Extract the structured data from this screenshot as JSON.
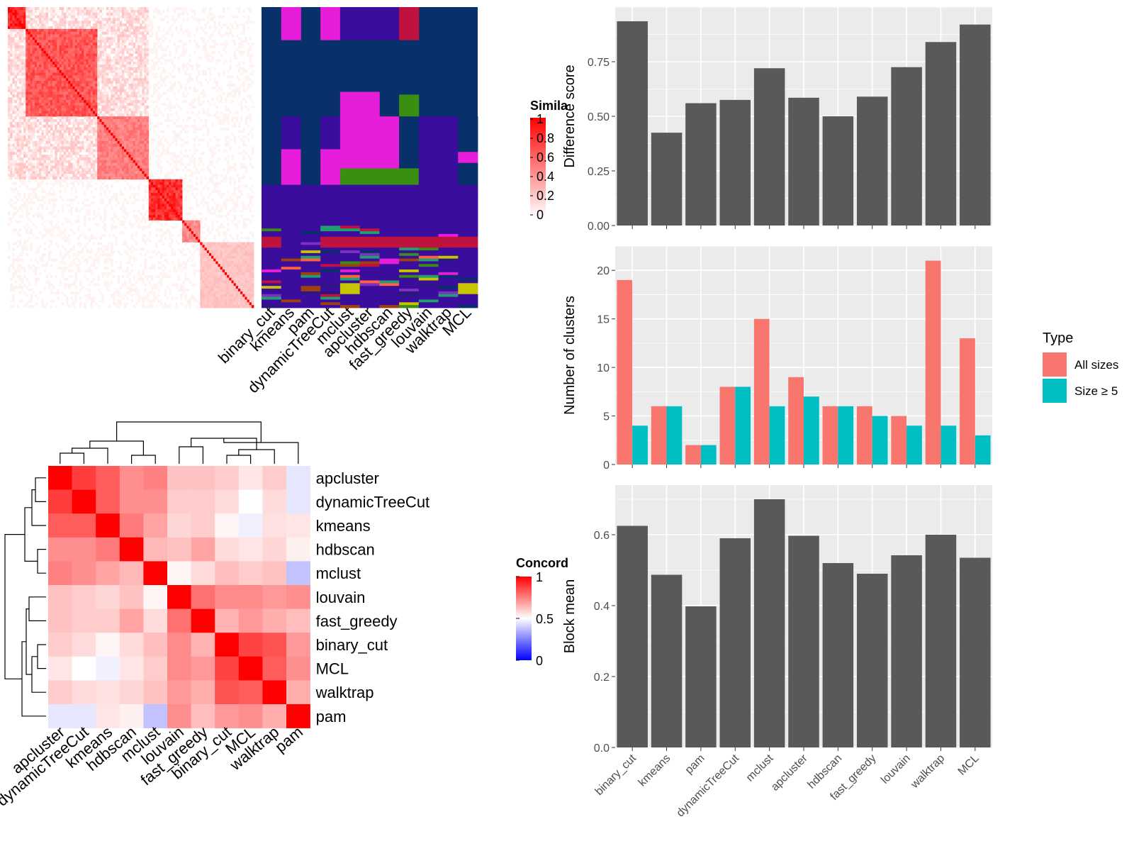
{
  "colors": {
    "panel_bg": "#ebebeb",
    "bar_dark": "#595959",
    "all_sizes": "#f8766d",
    "size_ge5": "#00bfc4",
    "heat_high": "#ff0000",
    "heat_mid": "#ffffff",
    "heat_low": "#0000ff",
    "navy": "#08306b",
    "indigo": "#3b0d9c",
    "magenta": "#e61dd9",
    "crimson": "#c0123f",
    "green": "#3a8f13",
    "olive": "#c8c400"
  },
  "similarity_legend": {
    "title": "Simila",
    "ticks": [
      "1",
      "0.8",
      "0.6",
      "0.4",
      "0.2",
      "0"
    ]
  },
  "class_heatmap": {
    "columns": [
      "binary_cut",
      "kmeans",
      "pam",
      "dynamicTreeCut",
      "mclust",
      "apcluster",
      "hdbscan",
      "fast_greedy",
      "louvain",
      "walktrap",
      "MCL"
    ]
  },
  "concordance": {
    "legend": {
      "title": "Concord",
      "ticks": [
        "1",
        "0.5",
        "0"
      ]
    },
    "row_labels": [
      "apcluster",
      "dynamicTreeCut",
      "kmeans",
      "hdbscan",
      "mclust",
      "louvain",
      "fast_greedy",
      "binary_cut",
      "MCL",
      "walktrap",
      "pam"
    ],
    "col_labels": [
      "apcluster",
      "dynamicTreeCut",
      "kmeans",
      "hdbscan",
      "mclust",
      "louvain",
      "fast_greedy",
      "binary_cut",
      "MCL",
      "walktrap",
      "pam"
    ],
    "matrix": [
      [
        1.0,
        0.88,
        0.82,
        0.72,
        0.75,
        0.62,
        0.62,
        0.6,
        0.55,
        0.6,
        0.45
      ],
      [
        0.88,
        1.0,
        0.82,
        0.72,
        0.72,
        0.6,
        0.6,
        0.57,
        0.5,
        0.57,
        0.45
      ],
      [
        0.82,
        0.82,
        1.0,
        0.76,
        0.68,
        0.58,
        0.6,
        0.52,
        0.47,
        0.56,
        0.55
      ],
      [
        0.72,
        0.72,
        0.76,
        1.0,
        0.64,
        0.62,
        0.68,
        0.57,
        0.55,
        0.58,
        0.53
      ],
      [
        0.75,
        0.72,
        0.68,
        0.64,
        1.0,
        0.52,
        0.57,
        0.63,
        0.6,
        0.62,
        0.38
      ],
      [
        0.62,
        0.6,
        0.58,
        0.62,
        0.52,
        1.0,
        0.78,
        0.73,
        0.73,
        0.7,
        0.72
      ],
      [
        0.62,
        0.6,
        0.6,
        0.68,
        0.57,
        0.78,
        1.0,
        0.65,
        0.7,
        0.66,
        0.63
      ],
      [
        0.6,
        0.57,
        0.52,
        0.57,
        0.63,
        0.73,
        0.65,
        1.0,
        0.87,
        0.84,
        0.7
      ],
      [
        0.55,
        0.5,
        0.47,
        0.55,
        0.6,
        0.73,
        0.7,
        0.87,
        1.0,
        0.82,
        0.72
      ],
      [
        0.6,
        0.57,
        0.56,
        0.58,
        0.62,
        0.7,
        0.66,
        0.84,
        0.82,
        1.0,
        0.66
      ],
      [
        0.45,
        0.45,
        0.55,
        0.53,
        0.38,
        0.72,
        0.63,
        0.7,
        0.72,
        0.66,
        1.0
      ]
    ]
  },
  "chart_data": [
    {
      "type": "bar",
      "categories": [
        "binary_cut",
        "kmeans",
        "pam",
        "dynamicTreeCut",
        "mclust",
        "apcluster",
        "hdbscan",
        "fast_greedy",
        "louvain",
        "walktrap",
        "MCL"
      ],
      "values": [
        0.935,
        0.425,
        0.56,
        0.575,
        0.72,
        0.585,
        0.5,
        0.59,
        0.725,
        0.84,
        0.92
      ],
      "xlabel": "",
      "ylabel": "Difference score",
      "ylim": [
        0,
        1
      ],
      "yticks": [
        "0.00",
        "0.25",
        "0.50",
        "0.75"
      ],
      "grid": true
    },
    {
      "type": "bar",
      "categories": [
        "binary_cut",
        "kmeans",
        "pam",
        "dynamicTreeCut",
        "mclust",
        "apcluster",
        "hdbscan",
        "fast_greedy",
        "louvain",
        "walktrap",
        "MCL"
      ],
      "series": [
        {
          "name": "All sizes",
          "values": [
            19,
            6,
            2,
            8,
            15,
            9,
            6,
            6,
            5,
            21,
            13
          ]
        },
        {
          "name": "Size ≥ 5",
          "values": [
            4,
            6,
            2,
            8,
            6,
            7,
            6,
            5,
            4,
            4,
            3
          ]
        }
      ],
      "ylabel": "Number of clusters",
      "ylim": [
        0,
        22.5
      ],
      "yticks": [
        "0",
        "5",
        "10",
        "15",
        "20"
      ],
      "legend": {
        "title": "Type",
        "position": "right"
      },
      "grid": true
    },
    {
      "type": "bar",
      "categories": [
        "binary_cut",
        "kmeans",
        "pam",
        "dynamicTreeCut",
        "mclust",
        "apcluster",
        "hdbscan",
        "fast_greedy",
        "louvain",
        "walktrap",
        "MCL"
      ],
      "values": [
        0.625,
        0.487,
        0.398,
        0.59,
        0.7,
        0.597,
        0.52,
        0.49,
        0.542,
        0.6,
        0.535
      ],
      "ylabel": "Block mean",
      "ylim": [
        0,
        0.74
      ],
      "yticks": [
        "0.0",
        "0.2",
        "0.4",
        "0.6"
      ],
      "grid": true
    }
  ]
}
